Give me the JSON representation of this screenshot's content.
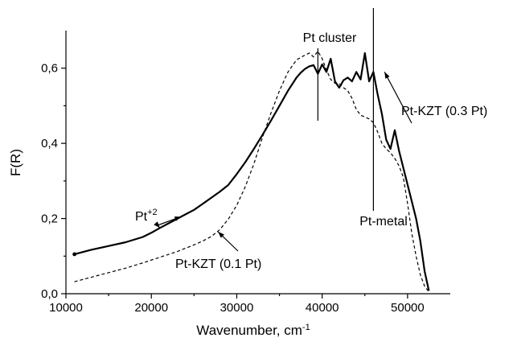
{
  "chart_data": {
    "type": "line",
    "title": "",
    "xlabel": "Wavenumber, cm",
    "xlabel_sup": "-1",
    "ylabel": "F(R)",
    "xlim": [
      10000,
      55000
    ],
    "ylim": [
      0,
      0.7
    ],
    "x_ticks": [
      10000,
      20000,
      30000,
      40000,
      50000
    ],
    "x_tick_labels": [
      "10000",
      "20000",
      "30000",
      "40000",
      "50000"
    ],
    "y_ticks": [
      0,
      0.2,
      0.4,
      0.6
    ],
    "y_tick_labels": [
      "0,0",
      "0,2",
      "0,4",
      "0,6"
    ],
    "grid": false,
    "series": [
      {
        "name": "Pt-KZT (0.3 Pt)",
        "style": "solid",
        "x": [
          11000,
          13000,
          15000,
          17000,
          19000,
          20000,
          21000,
          22000,
          23000,
          24000,
          25000,
          26000,
          27000,
          28000,
          29000,
          30000,
          31000,
          32000,
          33000,
          34000,
          35000,
          36000,
          37000,
          37500,
          38000,
          38500,
          39000,
          39500,
          40000,
          40500,
          41000,
          41500,
          42000,
          42500,
          43000,
          43500,
          44000,
          44500,
          45000,
          45500,
          46000,
          46500,
          47000,
          47500,
          48000,
          48500,
          49000,
          49500,
          50000,
          50500,
          51000,
          51500,
          52000,
          52500
        ],
        "y": [
          0.105,
          0.117,
          0.127,
          0.137,
          0.151,
          0.162,
          0.175,
          0.187,
          0.199,
          0.211,
          0.223,
          0.239,
          0.255,
          0.271,
          0.289,
          0.318,
          0.35,
          0.385,
          0.422,
          0.46,
          0.5,
          0.54,
          0.575,
          0.588,
          0.598,
          0.605,
          0.608,
          0.585,
          0.61,
          0.59,
          0.625,
          0.565,
          0.548,
          0.568,
          0.575,
          0.565,
          0.59,
          0.57,
          0.64,
          0.565,
          0.59,
          0.53,
          0.478,
          0.41,
          0.385,
          0.435,
          0.38,
          0.335,
          0.29,
          0.245,
          0.2,
          0.14,
          0.06,
          0.008
        ]
      },
      {
        "name": "Pt-KZT (0.1 Pt)",
        "style": "dashed",
        "x": [
          11000,
          13000,
          15000,
          17000,
          19000,
          21000,
          23000,
          25000,
          26000,
          27000,
          28000,
          29000,
          30000,
          31000,
          32000,
          33000,
          34000,
          35000,
          36000,
          37000,
          38000,
          38500,
          39000,
          39500,
          40000,
          40500,
          41000,
          41500,
          42000,
          42500,
          43000,
          43500,
          44000,
          44500,
          45000,
          45500,
          46000,
          46500,
          47000,
          47500,
          48000,
          48500,
          49000,
          49500,
          50000,
          50500,
          51000,
          51500,
          52000,
          52500
        ],
        "y": [
          0.032,
          0.044,
          0.056,
          0.068,
          0.082,
          0.097,
          0.112,
          0.13,
          0.14,
          0.152,
          0.17,
          0.198,
          0.235,
          0.285,
          0.345,
          0.415,
          0.48,
          0.54,
          0.59,
          0.622,
          0.635,
          0.64,
          0.63,
          0.645,
          0.625,
          0.595,
          0.57,
          0.56,
          0.558,
          0.548,
          0.54,
          0.52,
          0.49,
          0.475,
          0.47,
          0.465,
          0.455,
          0.43,
          0.4,
          0.385,
          0.375,
          0.36,
          0.34,
          0.31,
          0.24,
          0.16,
          0.1,
          0.05,
          0.02,
          0.005
        ]
      }
    ],
    "annotations": [
      {
        "id": "pt2",
        "text": "Pt",
        "sup": "+2",
        "arrows_to": [
          [
            21000,
            0.175
          ],
          [
            23500,
            0.205
          ]
        ]
      },
      {
        "id": "pt-kzt-01",
        "text": "Pt-KZT (0.1 Pt)",
        "arrow_to": [
          27800,
          0.165
        ]
      },
      {
        "id": "pt-kzt-03",
        "text": "Pt-KZT (0.3 Pt)",
        "arrow_to": [
          47300,
          0.59
        ]
      },
      {
        "id": "pt-cluster",
        "text": "Pt cluster",
        "marker_x": 39500
      },
      {
        "id": "pt-metal",
        "text": "Pt-metal",
        "marker_x": 46000
      }
    ]
  }
}
